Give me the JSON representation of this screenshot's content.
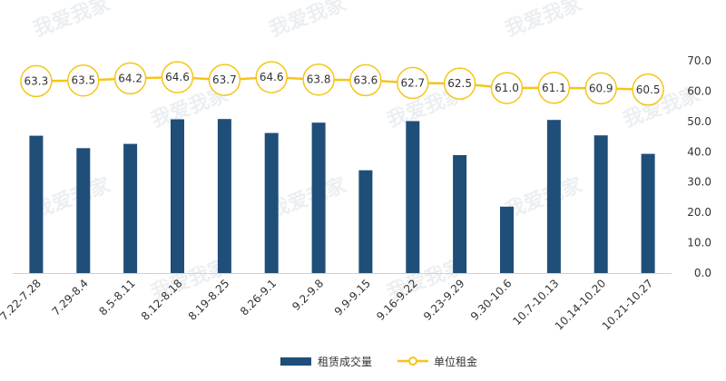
{
  "chart_data": {
    "type": "bar",
    "categories": [
      "7.22-7.28",
      "7.29-8.4",
      "8.5-8.11",
      "8.12-8.18",
      "8.19-8.25",
      "8.26-9.1",
      "9.2-9.8",
      "9.9-9.15",
      "9.16-9.22",
      "9.23-9.29",
      "9.30-10.6",
      "10.7-10.13",
      "10.14-10.20",
      "10.21-10.27"
    ],
    "series": [
      {
        "name": "租赁成交量",
        "type": "bar",
        "axis": "right",
        "color": "#1f4e79",
        "values": [
          45.3,
          41.2,
          42.6,
          50.7,
          50.8,
          46.2,
          49.6,
          33.9,
          50.1,
          38.9,
          21.9,
          50.5,
          45.4,
          39.3
        ]
      },
      {
        "name": "单位租金",
        "type": "line",
        "axis": "right",
        "color": "#f5c518",
        "values": [
          63.3,
          63.5,
          64.2,
          64.6,
          63.7,
          64.6,
          63.8,
          63.6,
          62.7,
          62.5,
          61.0,
          61.1,
          60.9,
          60.5
        ],
        "value_labels": [
          "63.3",
          "63.5",
          "64.2",
          "64.6",
          "63.7",
          "64.6",
          "63.8",
          "63.6",
          "62.7",
          "62.5",
          "61.0",
          "61.1",
          "60.9",
          "60.5"
        ]
      }
    ],
    "yaxis": {
      "side": "right",
      "ylim": [
        0,
        70
      ],
      "ticks": [
        "0.0",
        "10.0",
        "20.0",
        "30.0",
        "40.0",
        "50.0",
        "60.0",
        "70.0"
      ]
    },
    "grid": false,
    "legend": {
      "position": "bottom-center",
      "entries": [
        "租赁成交量",
        "单位租金"
      ]
    },
    "title": "",
    "xlabel": "",
    "ylabel": ""
  },
  "watermark": {
    "text": "我爱我家",
    "subtext": "www.5i5j.com"
  }
}
